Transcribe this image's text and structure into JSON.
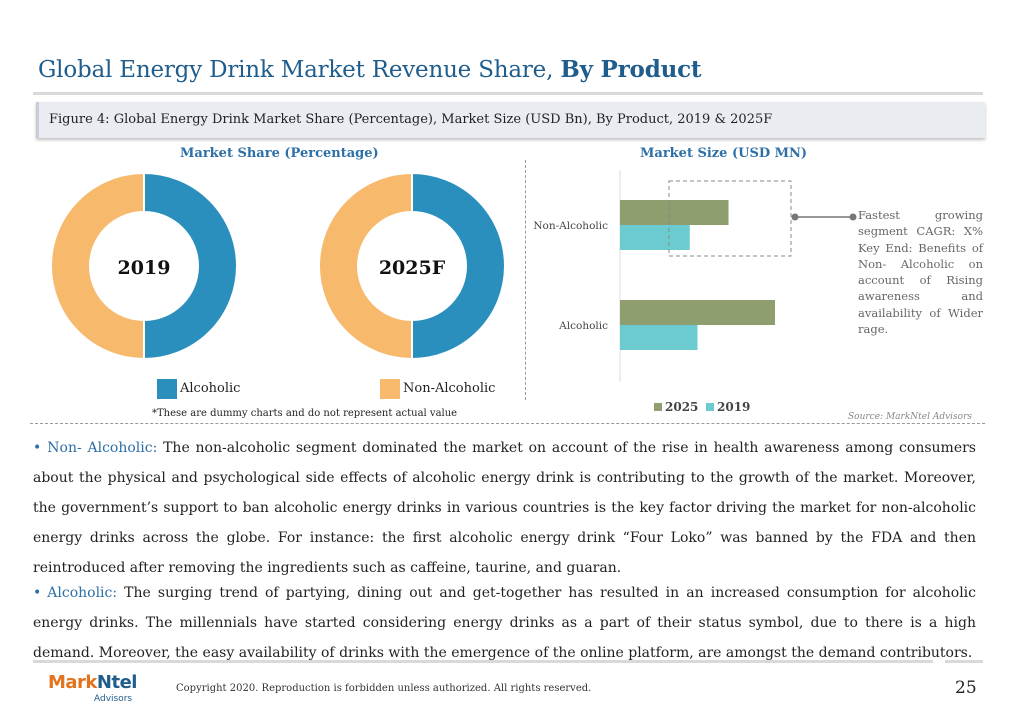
{
  "title": {
    "main": "Global Energy Drink Market Revenue Share, ",
    "bold": "By Product"
  },
  "figure_caption": "Figure 4: Global Energy Drink Market Share (Percentage), Market Size (USD Bn),  By Product, 2019 & 2025F",
  "left_panel": {
    "heading": "Market Share (Percentage)",
    "legend": [
      {
        "label": "Alcoholic",
        "color": "#2a8fbd"
      },
      {
        "label": "Non-Alcoholic",
        "color": "#f7b96b"
      }
    ],
    "note": "*These are dummy charts and do not represent actual value"
  },
  "right_panel": {
    "heading": "Market Size (USD MN)",
    "source": "Source: MarkNtel Advisors",
    "callout": {
      "line1_left": "Fastest",
      "line1_right": "growing",
      "rest": "segment CAGR: X% Key End: Benefits of Non- Alcoholic on account of Rising awareness and availability of Wider rage."
    }
  },
  "chart_data": [
    {
      "type": "pie",
      "center_label": "2019",
      "categories": [
        "Alcoholic",
        "Non-Alcoholic"
      ],
      "values": [
        50,
        50
      ],
      "colors": [
        "#2a8fbd",
        "#f7b96b"
      ]
    },
    {
      "type": "pie",
      "center_label": "2025F",
      "categories": [
        "Alcoholic",
        "Non-Alcoholic"
      ],
      "values": [
        50,
        50
      ],
      "colors": [
        "#2a8fbd",
        "#f7b96b"
      ]
    },
    {
      "type": "bar",
      "orientation": "horizontal",
      "categories": [
        "Non-Alcoholic",
        "Alcoholic"
      ],
      "series": [
        {
          "name": "2025",
          "values": [
            70,
            100
          ],
          "color": "#8f9e6e"
        },
        {
          "name": "2019",
          "values": [
            45,
            50
          ],
          "color": "#6bcbd1"
        }
      ],
      "xlim": [
        0,
        100
      ],
      "legend": "bottom"
    }
  ],
  "paragraphs": [
    {
      "label": "Non- Alcoholic:",
      "text": " The non-alcoholic segment dominated the market on account of the rise in health awareness among consumers about the physical and psychological side effects of alcoholic energy drink is contributing to the growth of the market. Moreover, the government’s support to ban alcoholic energy drinks in various countries is the key factor driving the market for non-alcoholic energy drinks across the globe. For instance: the first alcoholic energy drink “Four Loko” was banned by the FDA and then reintroduced after removing the ingredients such as caffeine, taurine, and guaran."
    },
    {
      "label": "Alcoholic:",
      "text": " The surging trend of partying, dining out and get-together has resulted in an increased consumption for alcoholic energy drinks. The millennials have started considering energy drinks as a part of their status symbol, due to there is a high demand. Moreover, the easy availability of drinks with the emergence of the online platform, are amongst the demand contributors."
    }
  ],
  "footer": {
    "logo_mark_a": "Mark",
    "logo_mark_b": "Ntel",
    "logo_sub": "Advisors",
    "copyright": "Copyright 2020. Reproduction is forbidden unless authorized. All rights reserved.",
    "page_number": "25"
  }
}
